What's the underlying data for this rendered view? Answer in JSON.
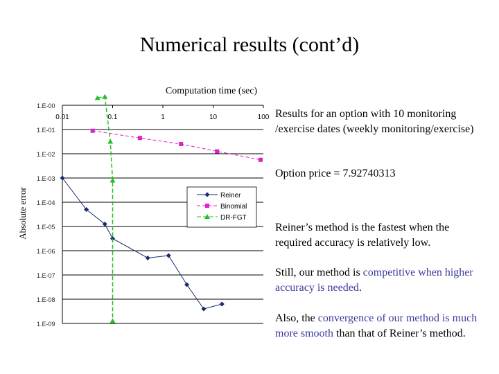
{
  "slide": {
    "title": "Numerical results (cont’d)"
  },
  "notes": {
    "results_for": "Results for an option with 10 monitoring /exercise dates (weekly monitoring/exercise)",
    "option_price": "Option price = 7.92740313",
    "reiner_fastest": "Reiner’s method is the fastest when the required accuracy is relatively low.",
    "still_a": "Still, our method is ",
    "still_b": "competitive when higher accuracy is needed",
    "still_c": ".",
    "also_a": "Also, the ",
    "also_b": "convergence of our method is much more smooth",
    "also_c": " than that of Reiner’s method."
  },
  "colors": {
    "reiner": "#1a2a6c",
    "binomial": "#e020c8",
    "dr_fgt": "#22c022",
    "highlight": "#3b3b9e"
  },
  "chart_data": {
    "type": "line",
    "title": "Computation time (sec)",
    "xlabel": "Computation time (sec)",
    "ylabel": "Absolute error",
    "x_scale": "log",
    "y_scale": "log",
    "xlim": [
      0.01,
      100
    ],
    "ylim_exp": [
      -9,
      0
    ],
    "x_ticks": [
      "0.01",
      "0.1",
      "1",
      "10",
      "100"
    ],
    "y_ticks": [
      "1.E-00",
      "1.E-01",
      "1.E-02",
      "1.E-03",
      "1.E-04",
      "1.E-05",
      "1.E-06",
      "1.E-07",
      "1.E-08",
      "1.E-09"
    ],
    "grid": "horizontal",
    "legend": "middle-right",
    "series": [
      {
        "name": "Reiner",
        "marker": "diamond",
        "x": [
          0.01,
          0.03,
          0.07,
          0.1,
          0.5,
          1.3,
          3.0,
          6.5,
          15
        ],
        "y_exp": [
          -3,
          -4.3,
          -4.9,
          -5.5,
          -6.3,
          -6.2,
          -7.4,
          -8.4,
          -8.2
        ]
      },
      {
        "name": "Binomial",
        "marker": "square",
        "x": [
          0.04,
          0.35,
          2.3,
          12,
          88
        ],
        "y_exp": [
          -1.05,
          -1.35,
          -1.6,
          -1.9,
          -2.25
        ]
      },
      {
        "name": "DR-FGT",
        "marker": "triangle",
        "x": [
          0.05,
          0.07,
          0.09,
          0.1,
          0.1
        ],
        "y_exp": [
          0.3,
          0.35,
          -1.5,
          -3.1,
          -8.9
        ]
      }
    ]
  }
}
